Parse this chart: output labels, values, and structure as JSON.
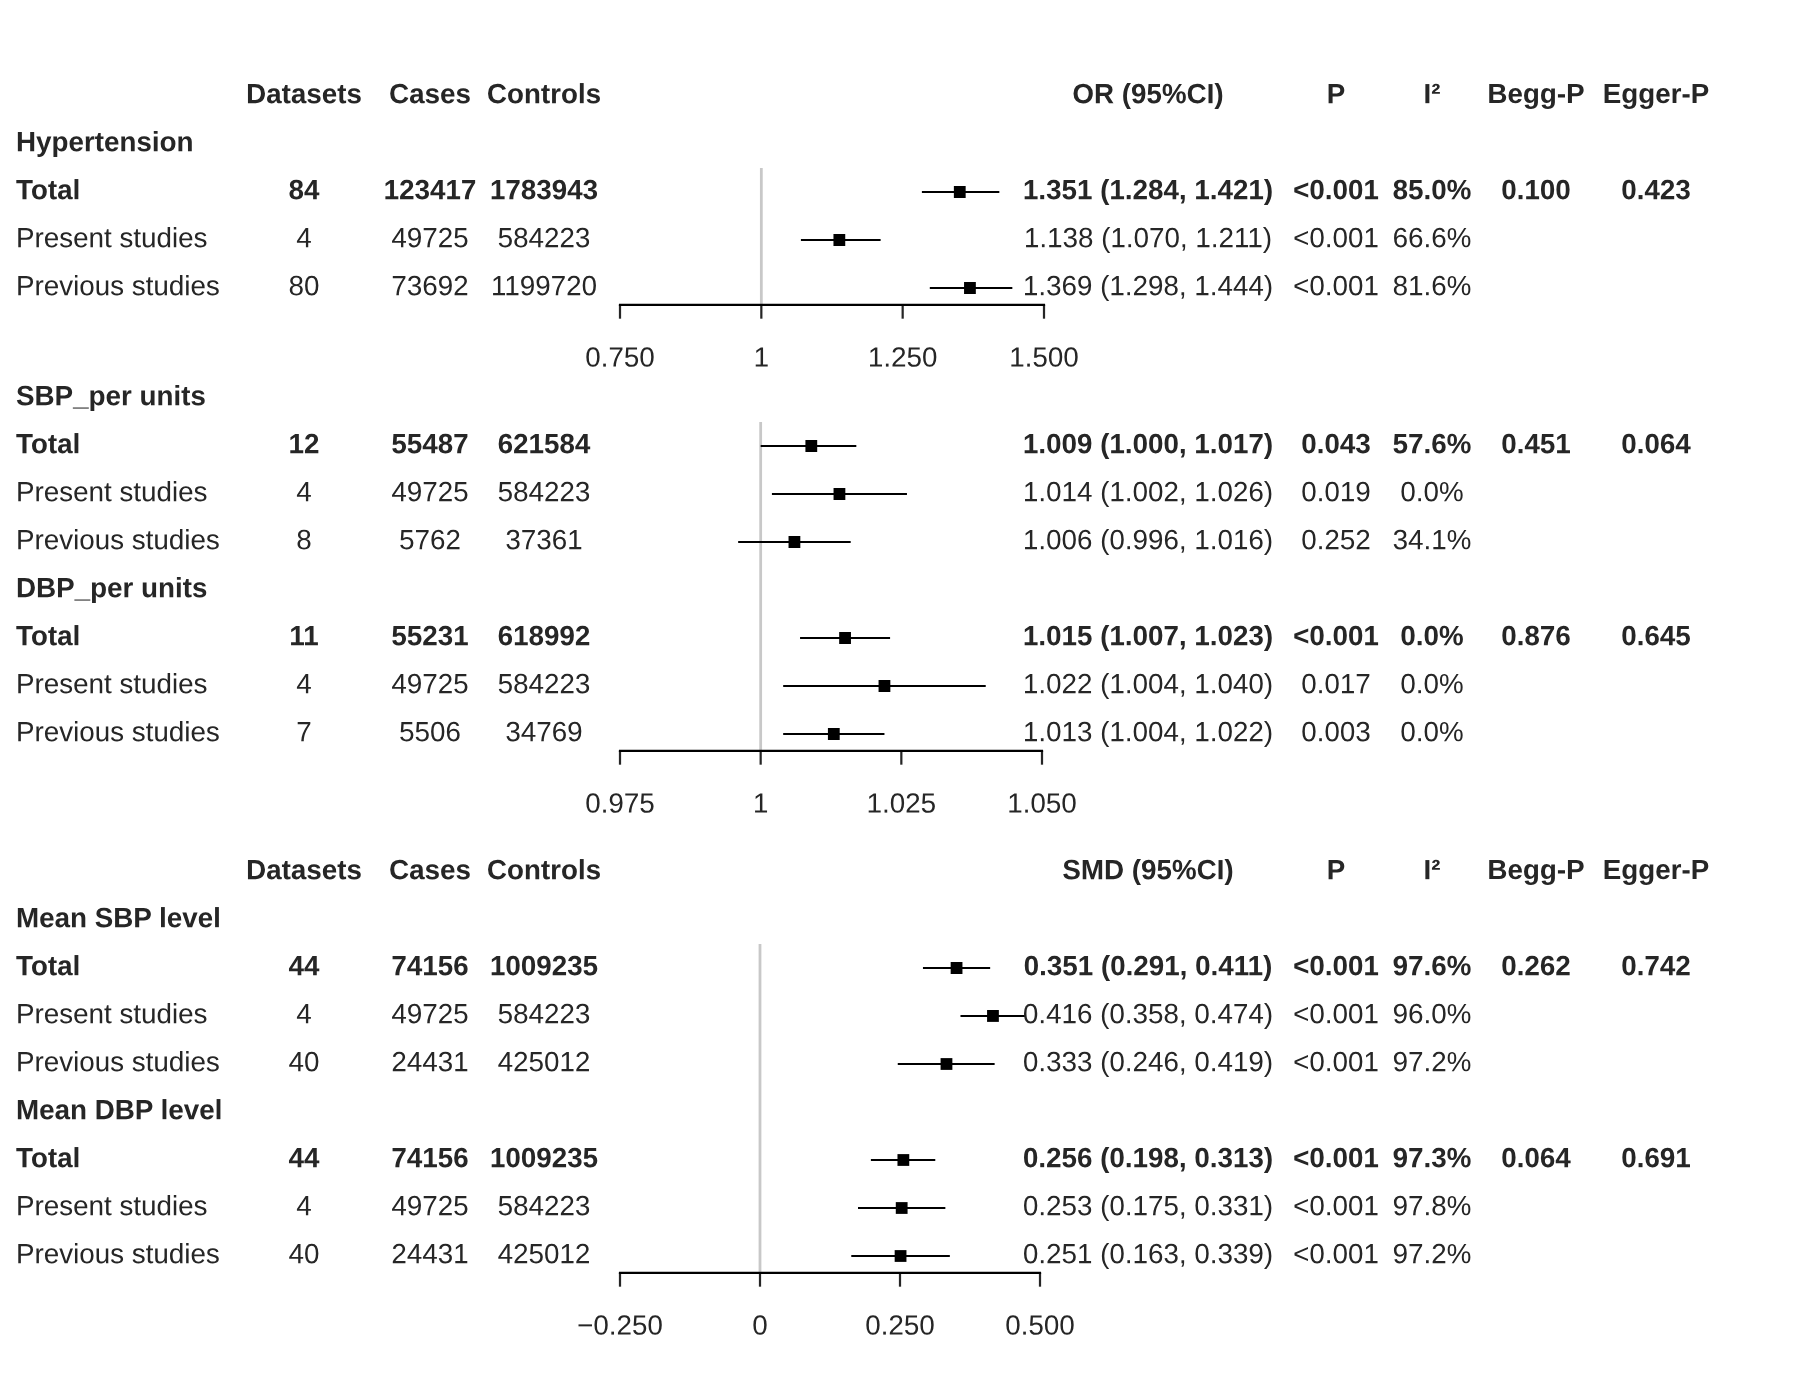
{
  "chart_data": [
    {
      "type": "scatter",
      "orientation": "horizontal",
      "marker": "square",
      "color": "#000000",
      "tick_labels": "x",
      "categories": [
        "Hypertension",
        "Total",
        "Present studies",
        "Previous studies"
      ],
      "values": [
        null,
        1.351,
        1.138,
        1.369
      ],
      "errors": [
        null,
        [
          1.284,
          1.421
        ],
        [
          1.07,
          1.211
        ],
        [
          1.298,
          1.444
        ]
      ],
      "value_labels": [
        null,
        "1.351 (1.284, 1.421)",
        "1.138 (1.070, 1.211)",
        "1.369 (1.298, 1.444)"
      ],
      "xlim": [
        0.75,
        1.5
      ],
      "xticks": [
        {
          "value": 0.75,
          "label": "0.750"
        },
        {
          "value": 1,
          "label": "1"
        },
        {
          "value": 1.25,
          "label": "1.250"
        },
        {
          "value": 1.5,
          "label": "1.500"
        }
      ],
      "ref_lines": [
        {
          "axis": "x",
          "value": 1,
          "color": "#c8c8c8"
        }
      ],
      "annotations": [
        "Datasets",
        "Cases",
        "Controls",
        "OR (95%CI)",
        "P",
        "I²",
        "Begg-P",
        "Egger-P",
        "84",
        "123417",
        "1783943",
        "<0.001",
        "85.0%",
        "0.100",
        "0.423",
        "4",
        "49725",
        "584223",
        "<0.001",
        "66.6%",
        "80",
        "73692",
        "1199720",
        "<0.001",
        "81.6%"
      ]
    },
    {
      "type": "scatter",
      "orientation": "horizontal",
      "marker": "square",
      "color": "#000000",
      "tick_labels": "x",
      "categories": [
        "SBP_per units",
        "Total",
        "Present studies",
        "Previous studies",
        "DBP_per units",
        "Total",
        "Present studies",
        "Previous studies"
      ],
      "values": [
        null,
        1.009,
        1.014,
        1.006,
        null,
        1.015,
        1.022,
        1.013
      ],
      "errors": [
        null,
        [
          1.0,
          1.017
        ],
        [
          1.002,
          1.026
        ],
        [
          0.996,
          1.016
        ],
        null,
        [
          1.007,
          1.023
        ],
        [
          1.004,
          1.04
        ],
        [
          1.004,
          1.022
        ]
      ],
      "value_labels": [
        null,
        "1.009 (1.000, 1.017)",
        "1.014 (1.002, 1.026)",
        "1.006 (0.996, 1.016)",
        null,
        "1.015 (1.007, 1.023)",
        "1.022 (1.004, 1.040)",
        "1.013 (1.004, 1.022)"
      ],
      "xlim": [
        0.975,
        1.05
      ],
      "xticks": [
        {
          "value": 0.975,
          "label": "0.975"
        },
        {
          "value": 1,
          "label": "1"
        },
        {
          "value": 1.025,
          "label": "1.025"
        },
        {
          "value": 1.05,
          "label": "1.050"
        }
      ],
      "ref_lines": [
        {
          "axis": "x",
          "value": 1,
          "color": "#c8c8c8"
        }
      ],
      "annotations": [
        "12",
        "55487",
        "621584",
        "0.043",
        "57.6%",
        "0.451",
        "0.064",
        "4",
        "49725",
        "584223",
        "0.019",
        "0.0%",
        "8",
        "5762",
        "37361",
        "0.252",
        "34.1%",
        "11",
        "55231",
        "618992",
        "<0.001",
        "0.0%",
        "0.876",
        "0.645",
        "4",
        "49725",
        "584223",
        "0.017",
        "0.0%",
        "7",
        "5506",
        "34769",
        "0.003",
        "0.0%"
      ]
    },
    {
      "type": "scatter",
      "orientation": "horizontal",
      "marker": "square",
      "color": "#000000",
      "tick_labels": "x",
      "categories": [
        "Mean SBP level",
        "Total",
        "Present studies",
        "Previous studies",
        "Mean DBP level",
        "Total",
        "Present studies",
        "Previous studies"
      ],
      "values": [
        null,
        0.351,
        0.416,
        0.333,
        null,
        0.256,
        0.253,
        0.251
      ],
      "errors": [
        null,
        [
          0.291,
          0.411
        ],
        [
          0.358,
          0.474
        ],
        [
          0.246,
          0.419
        ],
        null,
        [
          0.198,
          0.313
        ],
        [
          0.175,
          0.331
        ],
        [
          0.163,
          0.339
        ]
      ],
      "value_labels": [
        null,
        "0.351 (0.291, 0.411)",
        "0.416 (0.358, 0.474)",
        "0.333 (0.246, 0.419)",
        null,
        "0.256 (0.198, 0.313)",
        "0.253 (0.175, 0.331)",
        "0.251 (0.163, 0.339)"
      ],
      "xlim": [
        -0.25,
        0.5
      ],
      "xticks": [
        {
          "value": -0.25,
          "label": "−0.250"
        },
        0,
        {
          "value": 0.25,
          "label": "0.250"
        },
        {
          "value": 0.5,
          "label": "0.500"
        }
      ],
      "ref_lines": [
        {
          "axis": "x",
          "value": 0,
          "color": "#c8c8c8"
        }
      ],
      "annotations": [
        "Datasets",
        "Cases",
        "Controls",
        "SMD (95%CI)",
        "P",
        "I²",
        "Begg-P",
        "Egger-P",
        "44",
        "74156",
        "1009235",
        "<0.001",
        "97.6%",
        "0.262",
        "0.742",
        "4",
        "49725",
        "584223",
        "<0.001",
        "96.0%",
        "40",
        "24431",
        "425012",
        "<0.001",
        "97.2%",
        "44",
        "74156",
        "1009235",
        "<0.001",
        "97.3%",
        "0.064",
        "0.691",
        "4",
        "49725",
        "584223",
        "<0.001",
        "97.8%",
        "40",
        "24431",
        "425012",
        "<0.001",
        "97.2%"
      ]
    }
  ]
}
